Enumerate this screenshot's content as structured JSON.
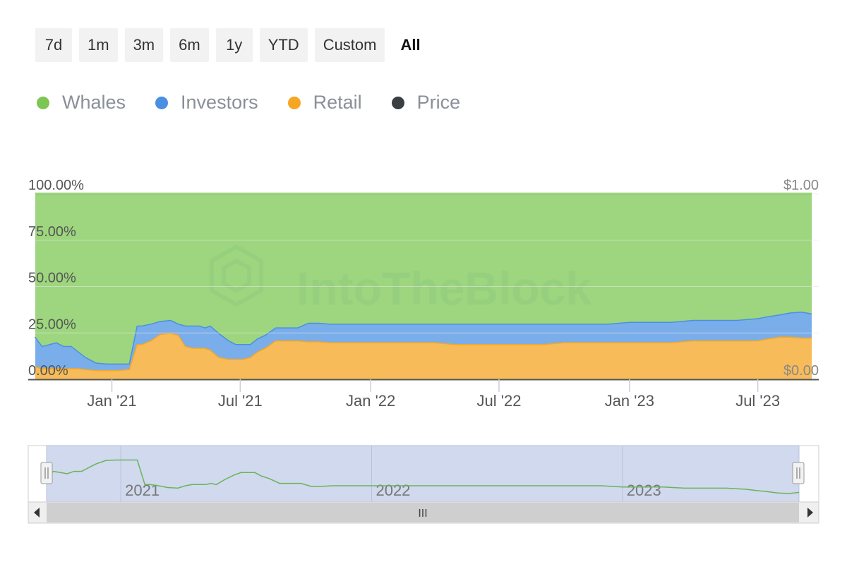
{
  "ranges": {
    "buttons": [
      "7d",
      "1m",
      "3m",
      "6m",
      "1y",
      "YTD",
      "Custom",
      "All"
    ],
    "active": "All"
  },
  "legend": [
    {
      "label": "Whales",
      "color": "#7dc653"
    },
    {
      "label": "Investors",
      "color": "#4a90e2"
    },
    {
      "label": "Retail",
      "color": "#f5a623"
    },
    {
      "label": "Price",
      "color": "#3a3d42"
    }
  ],
  "watermark": "IntoTheBlock",
  "navigator": {
    "years": [
      "2021",
      "2022",
      "2023"
    ],
    "scroll_grip": "III",
    "left_handle": "||",
    "right_handle": "||"
  },
  "chart_data": {
    "type": "area",
    "stacked": true,
    "x": [
      "2020-09-15",
      "2020-09-25",
      "2020-10-05",
      "2020-10-15",
      "2020-10-25",
      "2020-11-05",
      "2020-11-15",
      "2020-11-25",
      "2020-12-10",
      "2020-12-25",
      "2021-01-10",
      "2021-01-25",
      "2021-02-05",
      "2021-02-12",
      "2021-02-25",
      "2021-03-10",
      "2021-03-25",
      "2021-04-05",
      "2021-04-15",
      "2021-04-25",
      "2021-05-05",
      "2021-05-12",
      "2021-05-20",
      "2021-06-01",
      "2021-06-15",
      "2021-06-25",
      "2021-07-05",
      "2021-07-15",
      "2021-07-25",
      "2021-08-05",
      "2021-08-20",
      "2021-09-05",
      "2021-09-20",
      "2021-10-05",
      "2021-10-20",
      "2021-11-05",
      "2021-11-25",
      "2021-12-15",
      "2022-01-05",
      "2022-02-01",
      "2022-03-01",
      "2022-04-01",
      "2022-05-01",
      "2022-06-01",
      "2022-07-01",
      "2022-08-01",
      "2022-09-01",
      "2022-10-01",
      "2022-11-01",
      "2022-12-01",
      "2023-01-01",
      "2023-02-01",
      "2023-03-01",
      "2023-04-01",
      "2023-05-01",
      "2023-06-01",
      "2023-07-01",
      "2023-07-15",
      "2023-08-01",
      "2023-08-15",
      "2023-09-01",
      "2023-09-15"
    ],
    "series": [
      {
        "name": "Retail",
        "color": "#f5a623",
        "values": [
          7,
          6,
          6,
          6,
          6,
          6,
          6,
          5.5,
          5,
          5,
          5,
          5.5,
          19,
          19,
          21,
          24.5,
          25,
          24,
          18,
          17,
          17,
          17,
          16,
          12,
          11,
          11,
          11,
          12,
          15,
          17,
          21,
          21,
          21,
          20.5,
          20.5,
          20,
          20,
          20,
          20,
          20,
          20,
          20,
          19,
          19,
          19,
          19,
          19,
          20,
          20,
          20,
          20,
          20,
          20,
          21,
          21,
          21,
          21,
          22,
          23,
          23,
          22.5,
          22.5
        ]
      },
      {
        "name": "Investors",
        "color": "#4a90e2",
        "values": [
          16,
          12,
          13,
          14,
          12,
          12,
          9,
          6.5,
          4,
          3.5,
          3.5,
          3,
          10,
          10,
          9,
          7,
          7,
          6,
          11,
          12,
          12,
          11,
          13,
          13,
          10,
          8,
          8,
          7,
          7,
          7,
          7,
          7,
          7,
          10,
          10,
          10,
          10,
          10,
          10,
          10,
          10,
          10,
          11,
          11,
          11,
          11,
          11,
          10,
          10,
          10,
          11,
          11,
          11,
          11,
          11,
          11,
          12,
          12,
          12,
          13,
          14,
          13
        ]
      },
      {
        "name": "Whales",
        "color": "#7dc653",
        "values": [
          77,
          82,
          81,
          80,
          82,
          82,
          85,
          88,
          91,
          91.5,
          91.5,
          91.5,
          71,
          71,
          70,
          68.5,
          68,
          70,
          71,
          71,
          71,
          72,
          71,
          75,
          79,
          81,
          81,
          81,
          78,
          76,
          72,
          72,
          72,
          69.5,
          69.5,
          70,
          70,
          70,
          70,
          70,
          70,
          70,
          70,
          70,
          70,
          70,
          70,
          70,
          70,
          70,
          69,
          69,
          69,
          68,
          68,
          68,
          67,
          66,
          65,
          64,
          63.5,
          64.5
        ]
      }
    ],
    "price": [],
    "xticks": [
      "Jan '21",
      "Jul '21",
      "Jan '22",
      "Jul '22",
      "Jan '23",
      "Jul '23"
    ],
    "xtick_dates": [
      "2021-01-01",
      "2021-07-01",
      "2022-01-01",
      "2022-07-01",
      "2023-01-01",
      "2023-07-01"
    ],
    "yticks_left": [
      "0.00%",
      "25.00%",
      "50.00%",
      "75.00%",
      "100.00%"
    ],
    "yticks_right": [
      "$0.00",
      "$1.00"
    ],
    "ylim": [
      0,
      100
    ],
    "xlim": [
      "2020-09-15",
      "2023-09-15"
    ],
    "grid": true,
    "legend_position": "top-left"
  }
}
